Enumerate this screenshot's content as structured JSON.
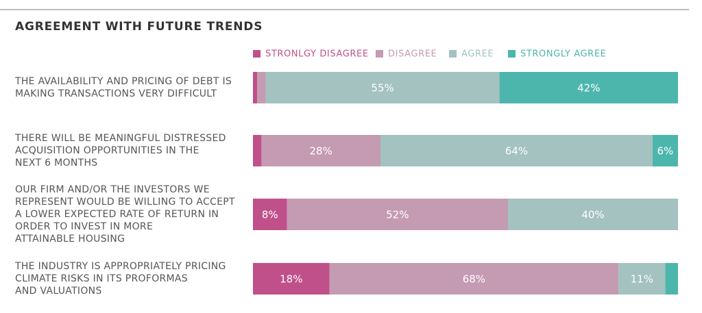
{
  "chart_data": {
    "type": "stacked-bar-horizontal",
    "title": "AGREEMENT WITH FUTURE TRENDS",
    "categories": [
      [
        "THE AVAILABILITY AND PRICING OF DEBT IS",
        "MAKING TRANSACTIONS VERY DIFFICULT"
      ],
      [
        "THERE WILL BE MEANINGFUL DISTRESSED",
        "ACQUISITION OPPORTUNITIES IN THE",
        "NEXT 6 MONTHS"
      ],
      [
        "OUR FIRM AND/OR THE INVESTORS WE",
        "REPRESENT WOULD BE WILLING TO ACCEPT",
        "A LOWER EXPECTED RATE OF RETURN IN",
        "ORDER TO INVEST IN MORE",
        "ATTAINABLE HOUSING"
      ],
      [
        "THE INDUSTRY IS APPROPRIATELY PRICING",
        "CLIMATE RISKS IN ITS PROFORMAS",
        "AND VALUATIONS"
      ]
    ],
    "xlim": [
      0,
      100
    ],
    "series": [
      {
        "name": "STRONLGY DISAGREE",
        "color": "#c0508a",
        "values": [
          1,
          2,
          8,
          18
        ],
        "value_labels": [
          null,
          null,
          "8%",
          "18%"
        ]
      },
      {
        "name": "DISAGREE",
        "color": "#c49bb3",
        "values": [
          2,
          28,
          52,
          68
        ],
        "value_labels": [
          null,
          "28%",
          "52%",
          "68%"
        ]
      },
      {
        "name": "AGREE",
        "color": "#a3c2c0",
        "values": [
          55,
          64,
          40,
          11
        ],
        "value_labels": [
          "55%",
          "64%",
          "40%",
          "11%"
        ]
      },
      {
        "name": "STRONGLY AGREE",
        "color": "#4db6ac",
        "values": [
          42,
          6,
          0,
          3
        ],
        "value_labels": [
          "42%",
          "6%",
          null,
          null
        ]
      }
    ]
  }
}
